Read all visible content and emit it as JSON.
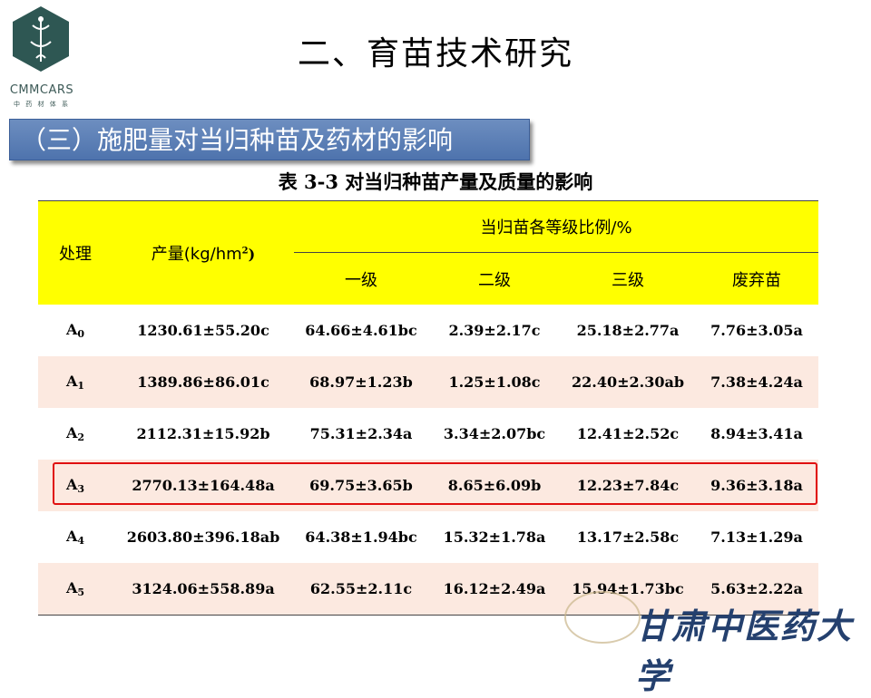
{
  "logo": {
    "text": "CMMCARS",
    "subtext": "中 药 材 体 系"
  },
  "page_title": "二、育苗技术研究",
  "section_title": "（三）施肥量对当归种苗及药材的影响",
  "table": {
    "caption": "表 3-3 对当归种苗产量及质量的影响",
    "header": {
      "treatment": "处理",
      "yield_prefix": "产量(kg/hm",
      "yield_sup": "2",
      "yield_suffix": ")",
      "group": "当归苗各等级比例/%",
      "grades": [
        "一级",
        "二级",
        "三级",
        "废弃苗"
      ]
    },
    "rows": [
      {
        "t": "A",
        "sub": "0",
        "yield": "1230.61±55.20c",
        "g1": "64.66±4.61bc",
        "g2": "2.39±2.17c",
        "g3": "25.18±2.77a",
        "waste": "7.76±3.05a"
      },
      {
        "t": "A",
        "sub": "1",
        "yield": "1389.86±86.01c",
        "g1": "68.97±1.23b",
        "g2": "1.25±1.08c",
        "g3": "22.40±2.30ab",
        "waste": "7.38±4.24a"
      },
      {
        "t": "A",
        "sub": "2",
        "yield": "2112.31±15.92b",
        "g1": "75.31±2.34a",
        "g2": "3.34±2.07bc",
        "g3": "12.41±2.52c",
        "waste": "8.94±3.41a"
      },
      {
        "t": "A",
        "sub": "3",
        "yield": "2770.13±164.48a",
        "g1": "69.75±3.65b",
        "g2": "8.65±6.09b",
        "g3": "12.23±7.84c",
        "waste": "9.36±3.18a"
      },
      {
        "t": "A",
        "sub": "4",
        "yield": "2603.80±396.18ab",
        "g1": "64.38±1.94bc",
        "g2": "15.32±1.78a",
        "g3": "13.17±2.58c",
        "waste": "7.13±1.29a"
      },
      {
        "t": "A",
        "sub": "5",
        "yield": "3124.06±558.89a",
        "g1": "62.55±2.11c",
        "g2": "16.12±2.49a",
        "g3": "15.94±1.73bc",
        "waste": "5.63±2.22a"
      }
    ]
  },
  "footer": {
    "university": "甘肃中医药大学"
  },
  "colors": {
    "header_bg": "#ffff00",
    "stripe_bg": "#fce9e0",
    "banner_bg": "#5b7fb8",
    "highlight": "#e01010"
  }
}
